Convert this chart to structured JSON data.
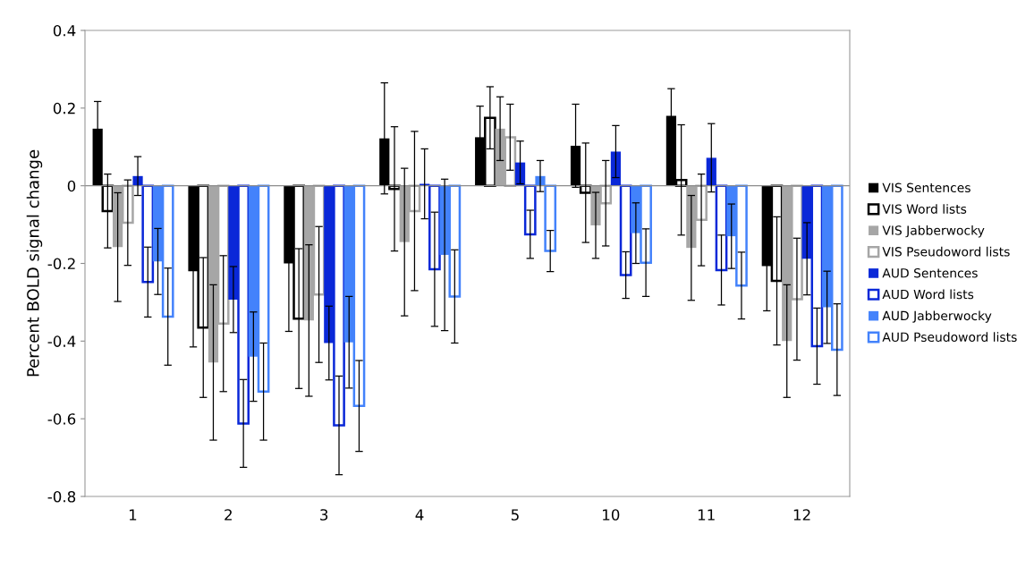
{
  "chart_data": {
    "type": "bar",
    "ylabel": "Percent BOLD signal change",
    "categories": [
      "1",
      "2",
      "3",
      "4",
      "5",
      "10",
      "11",
      "12"
    ],
    "ylim": [
      -0.8,
      0.4
    ],
    "yticks": [
      -0.8,
      -0.6,
      -0.4,
      -0.2,
      0,
      0.2,
      0.4
    ],
    "legend": "right",
    "ref_lines": [
      {
        "axis": "y",
        "value": 0,
        "color": "#8c8c8c"
      }
    ],
    "series": [
      {
        "name": "VIS Sentences",
        "color": "#000000",
        "values": [
          0.147,
          -0.22,
          -0.2,
          0.122,
          0.125,
          0.103,
          0.18,
          -0.207
        ],
        "errors": [
          0.07,
          0.195,
          0.175,
          0.143,
          0.08,
          0.107,
          0.07,
          0.115
        ]
      },
      {
        "name": "VIS Word lists",
        "color": "#000000",
        "values": [
          -0.065,
          -0.365,
          -0.342,
          -0.008,
          0.175,
          -0.018,
          0.015,
          -0.245
        ],
        "errors": [
          0.095,
          0.18,
          0.18,
          0.16,
          0.08,
          0.128,
          0.142,
          0.165
        ]
      },
      {
        "name": "VIS Jabberwocky",
        "color": "#a6a6a6",
        "values": [
          -0.158,
          -0.455,
          -0.347,
          -0.145,
          0.147,
          -0.102,
          -0.16,
          -0.4
        ],
        "errors": [
          0.14,
          0.2,
          0.195,
          0.19,
          0.082,
          0.085,
          0.135,
          0.145
        ]
      },
      {
        "name": "VIS Pseudoword lists",
        "color": "#a6a6a6",
        "values": [
          -0.095,
          -0.355,
          -0.28,
          -0.065,
          0.125,
          -0.045,
          -0.088,
          -0.292
        ],
        "errors": [
          0.11,
          0.175,
          0.175,
          0.205,
          0.085,
          0.11,
          0.118,
          0.157
        ]
      },
      {
        "name": "AUD Sentences",
        "color": "#0a28d8",
        "values": [
          0.025,
          -0.293,
          -0.405,
          0.005,
          0.06,
          0.088,
          0.072,
          -0.188
        ],
        "errors": [
          0.05,
          0.085,
          0.095,
          0.09,
          0.055,
          0.067,
          0.088,
          0.093
        ]
      },
      {
        "name": "AUD Word lists",
        "color": "#0a28d8",
        "values": [
          -0.248,
          -0.612,
          -0.617,
          -0.215,
          -0.125,
          -0.23,
          -0.217,
          -0.413
        ],
        "errors": [
          0.09,
          0.113,
          0.127,
          0.147,
          0.062,
          0.06,
          0.09,
          0.098
        ]
      },
      {
        "name": "AUD Jabberwocky",
        "color": "#4382fb",
        "values": [
          -0.195,
          -0.44,
          -0.403,
          -0.178,
          0.025,
          -0.122,
          -0.13,
          -0.313
        ],
        "errors": [
          0.085,
          0.115,
          0.118,
          0.195,
          0.04,
          0.078,
          0.083,
          0.093
        ]
      },
      {
        "name": "AUD Pseudoword lists",
        "color": "#4382fb",
        "values": [
          -0.337,
          -0.53,
          -0.567,
          -0.285,
          -0.168,
          -0.198,
          -0.257,
          -0.422
        ],
        "errors": [
          0.125,
          0.125,
          0.117,
          0.12,
          0.053,
          0.087,
          0.086,
          0.118
        ]
      }
    ]
  }
}
